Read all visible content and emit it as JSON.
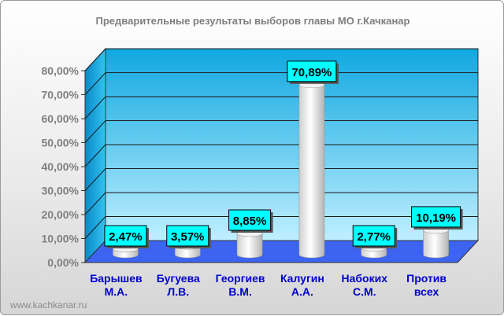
{
  "chart_data": {
    "type": "bar",
    "title": "Предварительные результаты выборов главы МО г.Качканар",
    "categories": [
      [
        "Барышев",
        "М.А."
      ],
      [
        "Бугуева",
        "Л.В."
      ],
      [
        "Георгиев",
        "В.М."
      ],
      [
        "Калугин",
        "А.А."
      ],
      [
        "Набоких",
        "С.М."
      ],
      [
        "Против",
        "всех"
      ]
    ],
    "values": [
      2.47,
      3.57,
      8.85,
      70.89,
      2.77,
      10.19
    ],
    "value_labels": [
      "2,47%",
      "3,57%",
      "8,85%",
      "70,89%",
      "2,77%",
      "10,19%"
    ],
    "yticks": [
      "0,00%",
      "10,00%",
      "20,00%",
      "30,00%",
      "40,00%",
      "50,00%",
      "60,00%",
      "70,00%",
      "80,00%"
    ],
    "ylim": [
      0,
      80
    ],
    "grid": true,
    "xlabel": "",
    "ylabel": ""
  },
  "watermark": "www.kachkanar.ru",
  "colors": {
    "wall_top": "#10a8e0",
    "wall_bottom": "#bfefff",
    "floor": "#3c64f0",
    "label_box": "#00ffff",
    "axis_text": "#7f7f7f",
    "category_text": "#0000cc"
  }
}
